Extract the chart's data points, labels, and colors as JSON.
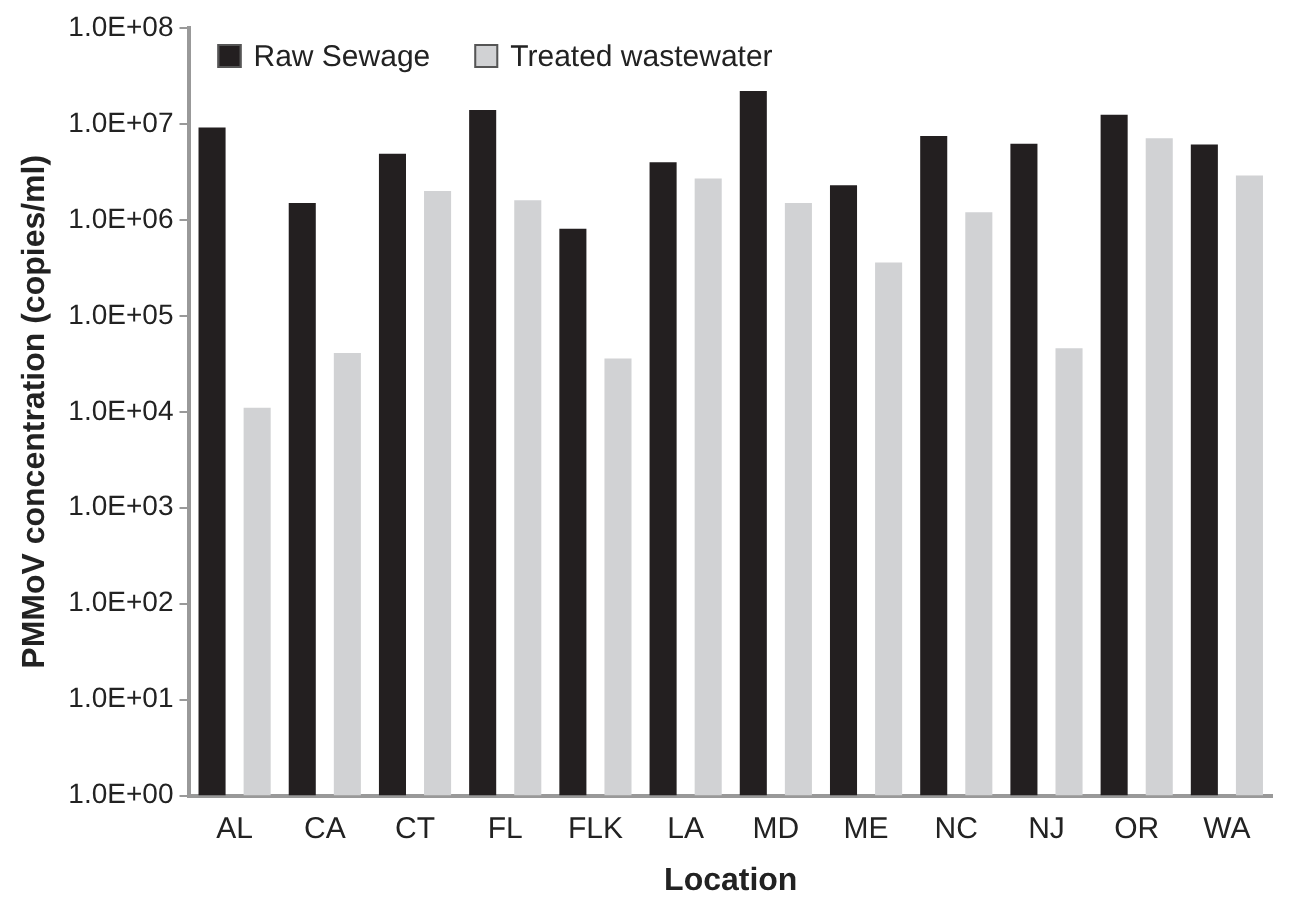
{
  "chart_data": {
    "type": "bar",
    "xlabel": "Location",
    "ylabel": "PMMoV concentration (copies/ml)",
    "categories": [
      "AL",
      "CA",
      "CT",
      "FL",
      "FLK",
      "LA",
      "MD",
      "ME",
      "NC",
      "NJ",
      "OR",
      "WA"
    ],
    "series": [
      {
        "name": "Raw Sewage",
        "color": "#231f20",
        "values": [
          9200000,
          1500000,
          4900000,
          14000000,
          810000,
          4000000,
          22000000,
          2300000,
          7500000,
          6200000,
          12500000,
          6100000
        ]
      },
      {
        "name": "Treated wastewater",
        "color": "#d1d2d4",
        "values": [
          11000,
          41000,
          2000000,
          1600000,
          36000,
          2700000,
          1500000,
          360000,
          1200000,
          46000,
          7100000,
          2900000
        ]
      }
    ],
    "log": "y",
    "ylim": [
      1,
      100000000
    ],
    "yticks": [
      {
        "value": 1,
        "label": "1.0E+00"
      },
      {
        "value": 10,
        "label": "1.0E+01"
      },
      {
        "value": 100,
        "label": "1.0E+02"
      },
      {
        "value": 1000,
        "label": "1.0E+03"
      },
      {
        "value": 10000,
        "label": "1.0E+04"
      },
      {
        "value": 100000,
        "label": "1.0E+05"
      },
      {
        "value": 1000000,
        "label": "1.0E+06"
      },
      {
        "value": 10000000,
        "label": "1.0E+07"
      },
      {
        "value": 100000000,
        "label": "1.0E+08"
      }
    ],
    "grid": false,
    "legend": "top left"
  }
}
